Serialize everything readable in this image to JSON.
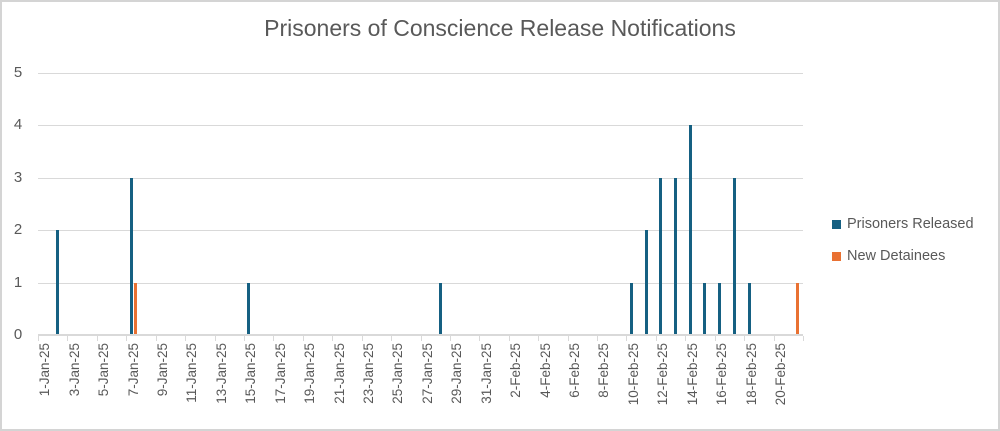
{
  "chart_data": {
    "type": "bar",
    "title": "Prisoners of Conscience Release Notifications",
    "xlabel": "",
    "ylabel": "",
    "ylim": [
      0,
      5
    ],
    "yticks": [
      0,
      1,
      2,
      3,
      4,
      5
    ],
    "grid": true,
    "legend_position": "right",
    "x_start": "1-Jan-25",
    "x_end": "21-Feb-25",
    "x_tick_labels": [
      "1-Jan-25",
      "3-Jan-25",
      "5-Jan-25",
      "7-Jan-25",
      "9-Jan-25",
      "11-Jan-25",
      "13-Jan-25",
      "15-Jan-25",
      "17-Jan-25",
      "19-Jan-25",
      "21-Jan-25",
      "23-Jan-25",
      "25-Jan-25",
      "27-Jan-25",
      "29-Jan-25",
      "31-Jan-25",
      "2-Feb-25",
      "4-Feb-25",
      "6-Feb-25",
      "8-Feb-25",
      "10-Feb-25",
      "12-Feb-25",
      "14-Feb-25",
      "16-Feb-25",
      "18-Feb-25",
      "20-Feb-25"
    ],
    "series": [
      {
        "name": "Prisoners Released",
        "color": "#156082",
        "points": [
          {
            "date": "2-Jan-25",
            "day": 1,
            "value": 2
          },
          {
            "date": "7-Jan-25",
            "day": 6,
            "value": 3
          },
          {
            "date": "15-Jan-25",
            "day": 14,
            "value": 1
          },
          {
            "date": "28-Jan-25",
            "day": 27,
            "value": 1
          },
          {
            "date": "10-Feb-25",
            "day": 40,
            "value": 1
          },
          {
            "date": "11-Feb-25",
            "day": 41,
            "value": 2
          },
          {
            "date": "12-Feb-25",
            "day": 42,
            "value": 3
          },
          {
            "date": "13-Feb-25",
            "day": 43,
            "value": 3
          },
          {
            "date": "14-Feb-25",
            "day": 44,
            "value": 4
          },
          {
            "date": "15-Feb-25",
            "day": 45,
            "value": 1
          },
          {
            "date": "16-Feb-25",
            "day": 46,
            "value": 1
          },
          {
            "date": "17-Feb-25",
            "day": 47,
            "value": 3
          },
          {
            "date": "18-Feb-25",
            "day": 48,
            "value": 1
          }
        ]
      },
      {
        "name": "New Detainees",
        "color": "#E97132",
        "points": [
          {
            "date": "7-Jan-25",
            "day": 6,
            "value": 1
          },
          {
            "date": "21-Feb-25",
            "day": 51,
            "value": 1
          }
        ]
      }
    ]
  },
  "legend": {
    "items": [
      {
        "label": "Prisoners Released",
        "color": "#156082"
      },
      {
        "label": "New Detainees",
        "color": "#E97132"
      }
    ]
  }
}
